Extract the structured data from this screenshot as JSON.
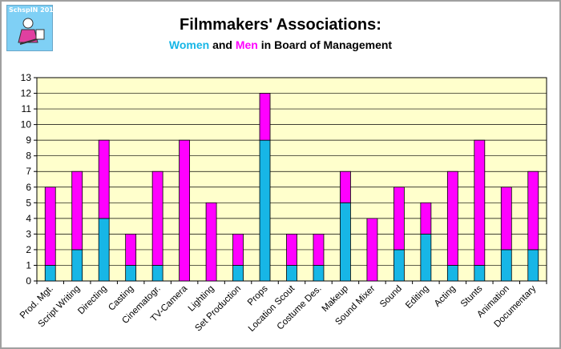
{
  "logo": {
    "text": "SchspIN 2014"
  },
  "header": {
    "title": "Filmmakers' Associations:",
    "subtitle_women": "Women",
    "subtitle_and": "and",
    "subtitle_men": "Men",
    "subtitle_rest": "in Board of Management"
  },
  "colors": {
    "women": "#17b6e6",
    "men": "#ff00ff",
    "plot_background": "#ffffcc",
    "grid": "#000000"
  },
  "chart_data": {
    "type": "bar",
    "stacked": true,
    "title": "",
    "xlabel": "",
    "ylabel": "",
    "ylim": [
      0,
      13
    ],
    "yticks": [
      0,
      1,
      2,
      3,
      4,
      5,
      6,
      7,
      8,
      9,
      10,
      11,
      12,
      13
    ],
    "grid": true,
    "legend": "none",
    "categories": [
      "Prod. Mgt.",
      "Script Writing",
      "Directing",
      "Casting",
      "Cinematogr.",
      "TV-Camera",
      "Lighting",
      "Set Production",
      "Props",
      "Location Scout",
      "Costume Des.",
      "Makeup",
      "Sound Mixer",
      "Sound",
      "Editing",
      "Acting",
      "Stunts",
      "Animation",
      "Documentary"
    ],
    "series": [
      {
        "values": [
          1,
          2,
          4,
          1,
          1,
          0,
          0,
          1,
          9,
          1,
          1,
          5,
          0,
          2,
          3,
          1,
          1,
          2,
          2
        ]
      },
      {
        "values": [
          5,
          5,
          5,
          2,
          6,
          9,
          5,
          2,
          3,
          2,
          2,
          2,
          4,
          4,
          2,
          6,
          8,
          4,
          5
        ]
      }
    ]
  }
}
